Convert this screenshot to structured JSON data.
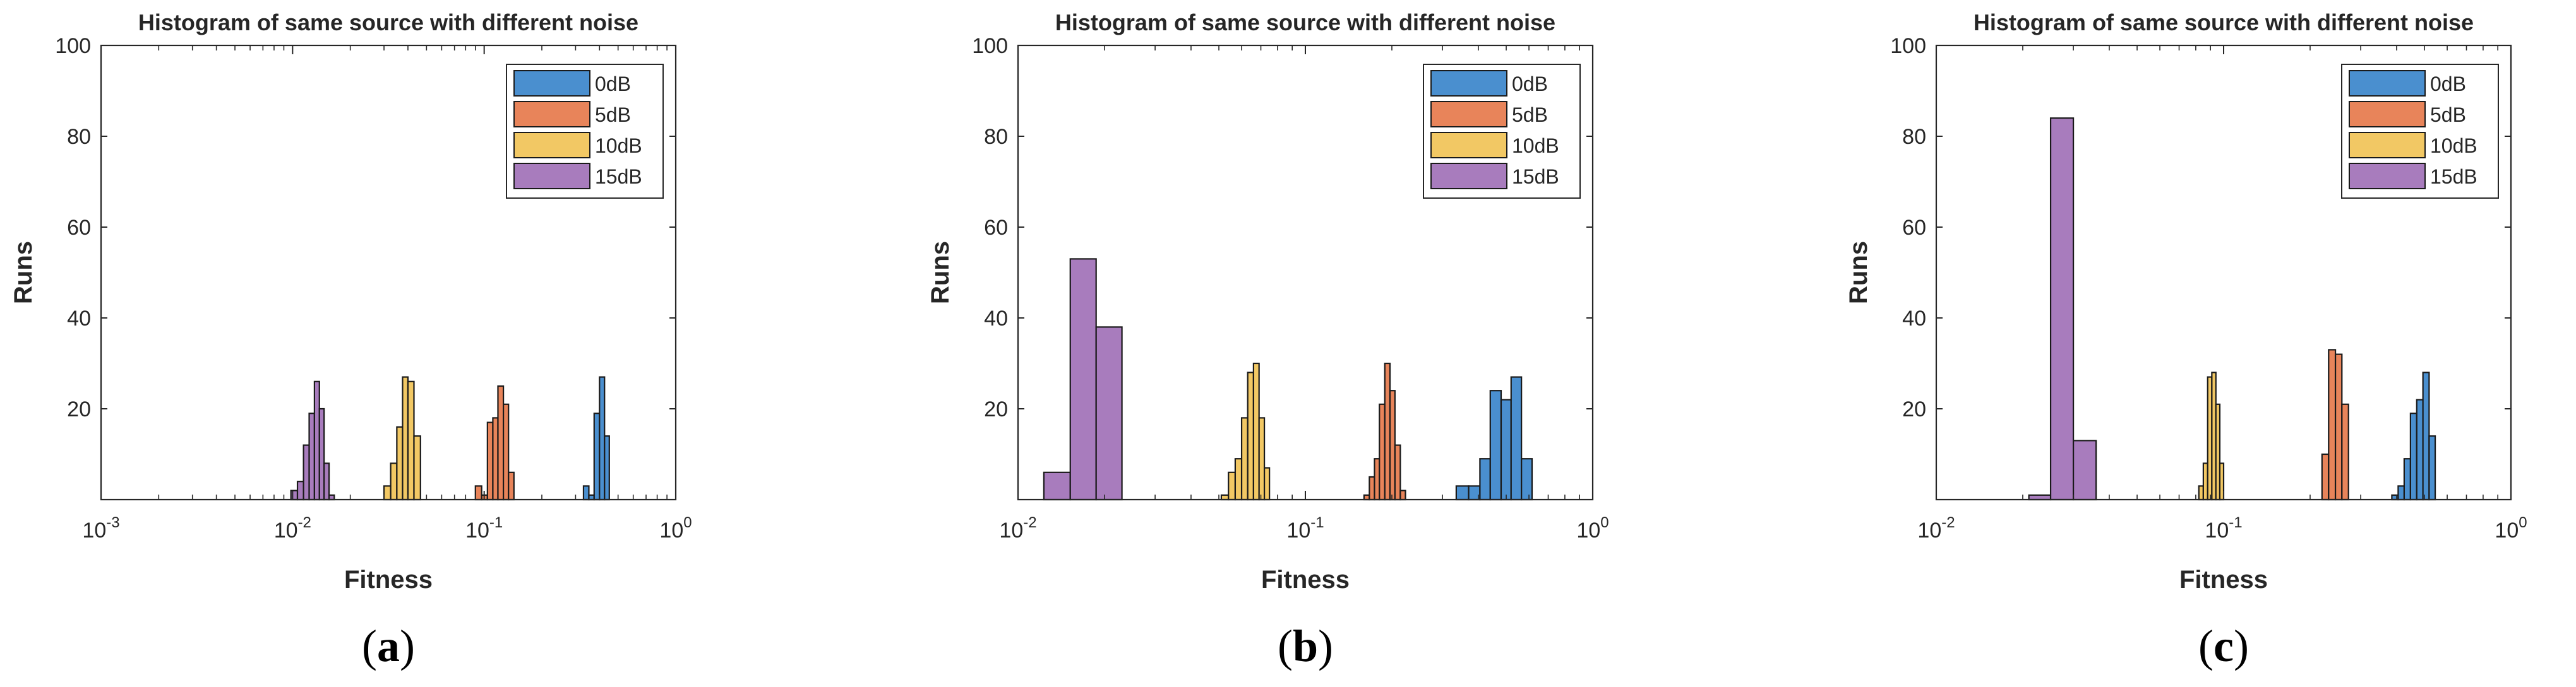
{
  "chart_data": [
    {
      "type": "bar",
      "title": "Histogram of same source with different noise",
      "xlabel": "Fitness",
      "ylabel": "Runs",
      "xscale": "log",
      "xlim": [
        0.001,
        1
      ],
      "ylim": [
        0,
        100
      ],
      "xticks": [
        {
          "base": "10",
          "exp": "-3",
          "value": 0.001
        },
        {
          "base": "10",
          "exp": "-2",
          "value": 0.01
        },
        {
          "base": "10",
          "exp": "-1",
          "value": 0.1
        },
        {
          "base": "10",
          "exp": "0",
          "value": 1
        }
      ],
      "yticks": [
        "20",
        "40",
        "60",
        "80",
        "100"
      ],
      "legend_position": "top-right",
      "caption": {
        "open": "(",
        "letter": "a",
        "close": ")"
      },
      "series": [
        {
          "name": "0dB",
          "color": "#4a8fcf",
          "bins": [
            [
              0.33,
              0.352,
              3
            ],
            [
              0.352,
              0.375,
              1
            ],
            [
              0.375,
              0.4,
              19
            ],
            [
              0.4,
              0.425,
              27
            ],
            [
              0.425,
              0.45,
              14
            ]
          ]
        },
        {
          "name": "5dB",
          "color": "#e8845a",
          "bins": [
            [
              0.09,
              0.097,
              3
            ],
            [
              0.097,
              0.104,
              1
            ],
            [
              0.104,
              0.111,
              17
            ],
            [
              0.111,
              0.118,
              18
            ],
            [
              0.118,
              0.126,
              25
            ],
            [
              0.126,
              0.134,
              21
            ],
            [
              0.134,
              0.143,
              6
            ]
          ]
        },
        {
          "name": "10dB",
          "color": "#f2c864",
          "bins": [
            [
              0.03,
              0.0325,
              3
            ],
            [
              0.0325,
              0.035,
              8
            ],
            [
              0.035,
              0.0375,
              16
            ],
            [
              0.0375,
              0.04,
              27
            ],
            [
              0.04,
              0.043,
              26
            ],
            [
              0.043,
              0.0465,
              14
            ]
          ]
        },
        {
          "name": "15dB",
          "color": "#a87cbd",
          "bins": [
            [
              0.0098,
              0.0106,
              2
            ],
            [
              0.0106,
              0.0114,
              4
            ],
            [
              0.0114,
              0.0122,
              12
            ],
            [
              0.0122,
              0.013,
              19
            ],
            [
              0.013,
              0.0138,
              26
            ],
            [
              0.0138,
              0.0146,
              20
            ],
            [
              0.0146,
              0.0155,
              8
            ],
            [
              0.0155,
              0.0165,
              1
            ]
          ]
        }
      ]
    },
    {
      "type": "bar",
      "title": "Histogram of same source with different noise",
      "xlabel": "Fitness",
      "ylabel": "Runs",
      "xscale": "log",
      "xlim": [
        0.01,
        1
      ],
      "ylim": [
        0,
        100
      ],
      "xticks": [
        {
          "base": "10",
          "exp": "-2",
          "value": 0.01
        },
        {
          "base": "10",
          "exp": "-1",
          "value": 0.1
        },
        {
          "base": "10",
          "exp": "0",
          "value": 1
        }
      ],
      "yticks": [
        "20",
        "40",
        "60",
        "80",
        "100"
      ],
      "legend_position": "top-right",
      "caption": {
        "open": "(",
        "letter": "b",
        "close": ")"
      },
      "series": [
        {
          "name": "0dB",
          "color": "#4a8fcf",
          "bins": [
            [
              0.335,
              0.37,
              3
            ],
            [
              0.37,
              0.405,
              3
            ],
            [
              0.405,
              0.44,
              9
            ],
            [
              0.44,
              0.48,
              24
            ],
            [
              0.48,
              0.52,
              22
            ],
            [
              0.52,
              0.565,
              27
            ],
            [
              0.565,
              0.615,
              9
            ]
          ]
        },
        {
          "name": "5dB",
          "color": "#e8845a",
          "bins": [
            [
              0.16,
              0.167,
              1
            ],
            [
              0.167,
              0.174,
              5
            ],
            [
              0.174,
              0.181,
              9
            ],
            [
              0.181,
              0.189,
              21
            ],
            [
              0.189,
              0.197,
              30
            ],
            [
              0.197,
              0.205,
              24
            ],
            [
              0.205,
              0.214,
              12
            ],
            [
              0.214,
              0.223,
              2
            ]
          ]
        },
        {
          "name": "10dB",
          "color": "#f2c864",
          "bins": [
            [
              0.051,
              0.054,
              1
            ],
            [
              0.054,
              0.057,
              6
            ],
            [
              0.057,
              0.06,
              9
            ],
            [
              0.06,
              0.063,
              18
            ],
            [
              0.063,
              0.066,
              28
            ],
            [
              0.066,
              0.069,
              30
            ],
            [
              0.069,
              0.072,
              18
            ],
            [
              0.072,
              0.075,
              7
            ]
          ]
        },
        {
          "name": "15dB",
          "color": "#a87cbd",
          "bins": [
            [
              0.0123,
              0.0152,
              6
            ],
            [
              0.0152,
              0.0187,
              53
            ],
            [
              0.0187,
              0.023,
              38
            ]
          ]
        }
      ]
    },
    {
      "type": "bar",
      "title": "Histogram of same source with different noise",
      "xlabel": "Fitness",
      "ylabel": "Runs",
      "xscale": "log",
      "xlim": [
        0.01,
        1
      ],
      "ylim": [
        0,
        100
      ],
      "xticks": [
        {
          "base": "10",
          "exp": "-2",
          "value": 0.01
        },
        {
          "base": "10",
          "exp": "-1",
          "value": 0.1
        },
        {
          "base": "10",
          "exp": "0",
          "value": 1
        }
      ],
      "yticks": [
        "20",
        "40",
        "60",
        "80",
        "100"
      ],
      "legend_position": "top-right",
      "caption": {
        "open": "(",
        "letter": "c",
        "close": ")"
      },
      "series": [
        {
          "name": "0dB",
          "color": "#4a8fcf",
          "bins": [
            [
              0.385,
              0.405,
              1
            ],
            [
              0.405,
              0.425,
              3
            ],
            [
              0.425,
              0.447,
              9
            ],
            [
              0.447,
              0.47,
              19
            ],
            [
              0.47,
              0.494,
              22
            ],
            [
              0.494,
              0.519,
              28
            ],
            [
              0.519,
              0.545,
              14
            ]
          ]
        },
        {
          "name": "5dB",
          "color": "#e8845a",
          "bins": [
            [
              0.22,
              0.232,
              10
            ],
            [
              0.232,
              0.245,
              33
            ],
            [
              0.245,
              0.258,
              32
            ],
            [
              0.258,
              0.272,
              21
            ]
          ]
        },
        {
          "name": "10dB",
          "color": "#f2c864",
          "bins": [
            [
              0.082,
              0.085,
              3
            ],
            [
              0.085,
              0.088,
              8
            ],
            [
              0.088,
              0.091,
              27
            ],
            [
              0.091,
              0.094,
              28
            ],
            [
              0.094,
              0.097,
              21
            ],
            [
              0.097,
              0.1,
              8
            ]
          ]
        },
        {
          "name": "15dB",
          "color": "#a87cbd",
          "bins": [
            [
              0.021,
              0.025,
              1
            ],
            [
              0.025,
              0.03,
              84
            ],
            [
              0.03,
              0.036,
              13
            ]
          ]
        }
      ]
    }
  ]
}
